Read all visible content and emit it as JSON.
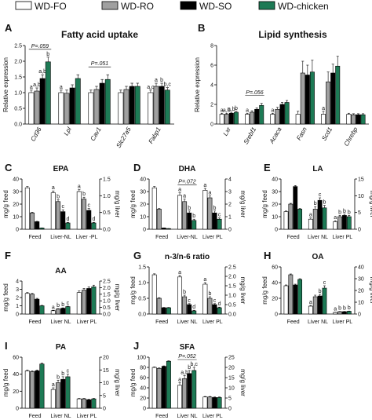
{
  "legend": [
    {
      "name": "WD-FO",
      "color": "#ffffff"
    },
    {
      "name": "WD-RO",
      "color": "#a0a0a0"
    },
    {
      "name": "WD-SO",
      "color": "#000000"
    },
    {
      "name": "WD-chicken",
      "color": "#1d7a55"
    }
  ],
  "chart_data": [
    {
      "letter": "A",
      "type": "bar",
      "title": "Fatty acid uptake",
      "ylabel": "Relative expression",
      "ylim": [
        0,
        2.5
      ],
      "yticks": [
        "0.0",
        "0.5",
        "1.0",
        "1.5",
        "2.0",
        "2.5"
      ],
      "categories": [
        "Cd36",
        "Lpl",
        "Cav1",
        "Slc27a5",
        "Fabp1"
      ],
      "series": [
        {
          "name": "WD-FO",
          "values": [
            1.0,
            1.0,
            1.0,
            1.0,
            1.0
          ],
          "errors": [
            0.08,
            0.08,
            0.08,
            0.08,
            0.08
          ]
        },
        {
          "name": "WD-RO",
          "values": [
            1.05,
            0.98,
            1.1,
            1.1,
            1.2
          ],
          "errors": [
            0.1,
            0.1,
            0.1,
            0.1,
            0.1
          ]
        },
        {
          "name": "WD-SO",
          "values": [
            1.45,
            1.15,
            1.3,
            1.2,
            1.2
          ],
          "errors": [
            0.12,
            0.1,
            0.12,
            0.1,
            0.1
          ]
        },
        {
          "name": "WD-chicken",
          "values": [
            1.98,
            1.45,
            1.42,
            1.2,
            1.08
          ],
          "errors": [
            0.15,
            0.12,
            0.15,
            0.1,
            0.08
          ]
        }
      ],
      "letters": [
        [
          "a",
          "a,b",
          "a,b",
          "b"
        ],
        [
          "a",
          "",
          "",
          ""
        ],
        [
          "",
          "",
          "",
          ""
        ],
        [
          "",
          "",
          "",
          ""
        ],
        [
          "a,c",
          "a",
          "b",
          "b,c"
        ]
      ],
      "annotations": [
        {
          "text": "P=.059",
          "cat": 0
        },
        {
          "text": "P=.051",
          "cat": 2
        }
      ]
    },
    {
      "letter": "B",
      "type": "bar",
      "title": "Lipid synthesis",
      "ylabel": "Relative expression",
      "ylim": [
        0,
        8
      ],
      "yticks": [
        "0",
        "2",
        "4",
        "6",
        "8"
      ],
      "categories": [
        "Lxr",
        "Srebf1",
        "Acaca",
        "Fasn",
        "Scd1",
        "Chrebp"
      ],
      "series": [
        {
          "name": "WD-FO",
          "values": [
            1.0,
            1.0,
            1.0,
            1.0,
            1.0,
            1.0
          ],
          "errors": [
            0.1,
            0.1,
            0.1,
            0.3,
            0.3,
            0.1
          ]
        },
        {
          "name": "WD-RO",
          "values": [
            1.0,
            1.2,
            1.5,
            5.2,
            4.3,
            0.95
          ],
          "errors": [
            0.1,
            0.15,
            0.2,
            1.2,
            1.0,
            0.1
          ]
        },
        {
          "name": "WD-SO",
          "values": [
            1.1,
            1.5,
            2.0,
            5.0,
            5.2,
            0.95
          ],
          "errors": [
            0.1,
            0.15,
            0.2,
            1.0,
            0.9,
            0.1
          ]
        },
        {
          "name": "WD-chicken",
          "values": [
            1.2,
            1.9,
            2.2,
            5.3,
            5.9,
            0.95
          ],
          "errors": [
            0.1,
            0.2,
            0.2,
            1.2,
            1.0,
            0.1
          ]
        }
      ],
      "letters": [
        [
          "a",
          "a,b",
          "a,b",
          "b"
        ],
        [
          "a",
          "",
          "",
          ""
        ],
        [
          "a",
          "",
          "",
          ""
        ],
        [
          "",
          "",
          "",
          ""
        ],
        [
          "a",
          "",
          "",
          ""
        ],
        [
          "",
          "",
          "",
          ""
        ]
      ],
      "annotations": [
        {
          "text": "P=.056",
          "cat": 1
        }
      ]
    },
    {
      "letter": "C",
      "type": "bar",
      "title": "EPA",
      "ylabel": "mg/g feed",
      "ylabel2": "mg/g liver",
      "ylim": [
        0,
        40
      ],
      "yticks": [
        "0",
        "10",
        "20",
        "30",
        "40"
      ],
      "yticks2": [
        "0.0",
        "0.5",
        "1.0",
        "1.5"
      ],
      "categories": [
        "Feed",
        "Liver-NL",
        "Liver -PL"
      ],
      "series": [
        {
          "name": "WD-FO",
          "values": [
            33,
            29,
            30
          ],
          "errors": [
            1,
            1.5,
            1.5
          ]
        },
        {
          "name": "WD-RO",
          "values": [
            13,
            22,
            24
          ],
          "errors": [
            0.5,
            1.5,
            1.5
          ]
        },
        {
          "name": "WD-SO",
          "values": [
            6,
            14,
            15
          ],
          "errors": [
            0.3,
            1.5,
            1.5
          ]
        },
        {
          "name": "WD-chicken",
          "values": [
            1,
            5,
            5
          ],
          "errors": [
            0.1,
            0.5,
            0.5
          ]
        }
      ],
      "letters": [
        [
          "",
          "",
          "",
          ""
        ],
        [
          "a",
          "b",
          "c",
          "d"
        ],
        [
          "a",
          "b",
          "c",
          "d"
        ]
      ]
    },
    {
      "letter": "D",
      "type": "bar",
      "title": "DHA",
      "ylabel": "mg/g feed",
      "ylabel2": "mg/g liver",
      "ylim": [
        0,
        40
      ],
      "yticks": [
        "0",
        "10",
        "20",
        "30",
        "40"
      ],
      "yticks2": [
        "0",
        "1",
        "2",
        "3",
        "4"
      ],
      "categories": [
        "Feed",
        "Liver-NL",
        "Liver PL"
      ],
      "series": [
        {
          "name": "WD-FO",
          "values": [
            33,
            27,
            31
          ],
          "errors": [
            1,
            2,
            1.5
          ]
        },
        {
          "name": "WD-RO",
          "values": [
            16,
            22,
            25
          ],
          "errors": [
            0.5,
            2,
            1.5
          ]
        },
        {
          "name": "WD-SO",
          "values": [
            1,
            13,
            13
          ],
          "errors": [
            0.1,
            1.5,
            1.5
          ]
        },
        {
          "name": "WD-chicken",
          "values": [
            0.5,
            7,
            8
          ],
          "errors": [
            0.1,
            1,
            1
          ]
        }
      ],
      "letters": [
        [
          "",
          "",
          "",
          ""
        ],
        [
          "a",
          "a",
          "b",
          "b"
        ],
        [
          "a",
          "a",
          "b",
          "c"
        ]
      ],
      "annotations": [
        {
          "text": "P=.072",
          "cat": 1
        }
      ]
    },
    {
      "letter": "E",
      "type": "bar",
      "title": "LA",
      "ylabel": "mg/g feed",
      "ylabel2": "mg/g liver",
      "ylim": [
        0,
        40
      ],
      "yticks": [
        "0",
        "10",
        "20",
        "30",
        "40"
      ],
      "yticks2": [
        "0",
        "5",
        "10",
        "15"
      ],
      "categories": [
        "Feed",
        "Liver NL",
        "Liver PL"
      ],
      "series": [
        {
          "name": "WD-FO",
          "values": [
            14,
            8,
            6
          ],
          "errors": [
            0.5,
            1,
            0.8
          ]
        },
        {
          "name": "WD-RO",
          "values": [
            20,
            16,
            10
          ],
          "errors": [
            0.6,
            2,
            1
          ]
        },
        {
          "name": "WD-SO",
          "values": [
            34,
            23,
            11
          ],
          "errors": [
            0.8,
            2,
            1
          ]
        },
        {
          "name": "WD-chicken",
          "values": [
            16,
            17,
            10
          ],
          "errors": [
            0.5,
            2,
            1
          ]
        }
      ],
      "letters": [
        [
          "",
          "",
          "",
          ""
        ],
        [
          "a",
          "b",
          "c",
          "b"
        ],
        [
          "a",
          "b",
          "b",
          "b"
        ]
      ]
    },
    {
      "letter": "F",
      "type": "bar",
      "title": "AA",
      "ylabel": "mg/g feed",
      "ylabel2": "mg/g liver",
      "ylim": [
        0,
        4
      ],
      "yticks": [
        "0",
        "1",
        "2",
        "3",
        "4"
      ],
      "yticks2": [
        "0.0",
        "0.5",
        "1.0",
        "1.5",
        "2.0",
        "2.5"
      ],
      "categories": [
        "Feed",
        "Liver NL",
        "Liver PL"
      ],
      "series": [
        {
          "name": "WD-FO",
          "values": [
            2.5,
            0.4,
            2.6
          ],
          "errors": [
            0.1,
            0.05,
            0.2
          ]
        },
        {
          "name": "WD-RO",
          "values": [
            2.4,
            0.6,
            2.9
          ],
          "errors": [
            0.1,
            0.05,
            0.2
          ]
        },
        {
          "name": "WD-SO",
          "values": [
            1.8,
            0.7,
            3.1
          ],
          "errors": [
            0.1,
            0.05,
            0.2
          ]
        },
        {
          "name": "WD-chicken",
          "values": [
            1.0,
            0.9,
            3.3
          ],
          "errors": [
            0.05,
            0.05,
            0.2
          ]
        }
      ],
      "letters": [
        [
          "",
          "",
          "",
          ""
        ],
        [
          "a",
          "b",
          "b",
          "c"
        ],
        [
          "",
          "",
          "",
          ""
        ]
      ]
    },
    {
      "letter": "G",
      "type": "bar",
      "title": "n-3/n-6 ratio",
      "ylabel": "mg/g feed",
      "ylabel2": "mg/g liver",
      "ylim": [
        0,
        1.5
      ],
      "yticks": [
        "0.0",
        "0.5",
        "1.0",
        "1.5"
      ],
      "yticks2": [
        "0.0",
        "0.5",
        "1.0",
        "1.5",
        "2.0",
        "2.5"
      ],
      "categories": [
        "Feed",
        "Liver NL",
        "Liver PL"
      ],
      "series": [
        {
          "name": "WD-FO",
          "values": [
            1.25,
            1.18,
            0.95
          ],
          "errors": [
            0.03,
            0.05,
            0.05
          ]
        },
        {
          "name": "WD-RO",
          "values": [
            0.5,
            0.55,
            0.5
          ],
          "errors": [
            0.02,
            0.05,
            0.05
          ]
        },
        {
          "name": "WD-SO",
          "values": [
            0.2,
            0.3,
            0.3
          ],
          "errors": [
            0.01,
            0.03,
            0.03
          ]
        },
        {
          "name": "WD-chicken",
          "values": [
            0.2,
            0.1,
            0.2
          ],
          "errors": [
            0.01,
            0.02,
            0.02
          ]
        }
      ],
      "letters": [
        [
          "",
          "",
          "",
          ""
        ],
        [
          "a",
          "b",
          "c",
          "d"
        ],
        [
          "a",
          "b",
          "c",
          "d"
        ]
      ]
    },
    {
      "letter": "H",
      "type": "bar",
      "title": "OA",
      "ylabel": "mg/g feed",
      "ylabel2": "mg/g liver",
      "ylim": [
        0,
        60
      ],
      "yticks": [
        "0",
        "20",
        "40",
        "60"
      ],
      "yticks2": [
        "0",
        "10",
        "20",
        "30",
        "40"
      ],
      "categories": [
        "Feed",
        "Liver NL",
        "Liver PL"
      ],
      "series": [
        {
          "name": "WD-FO",
          "values": [
            36,
            10,
            2
          ],
          "errors": [
            1,
            1,
            0.3
          ]
        },
        {
          "name": "WD-RO",
          "values": [
            50,
            22,
            3
          ],
          "errors": [
            1,
            2,
            0.3
          ]
        },
        {
          "name": "WD-SO",
          "values": [
            37,
            23,
            3
          ],
          "errors": [
            1,
            2,
            0.3
          ]
        },
        {
          "name": "WD-chicken",
          "values": [
            44,
            33,
            3.5
          ],
          "errors": [
            1,
            3,
            0.3
          ]
        }
      ],
      "letters": [
        [
          "",
          "",
          "",
          ""
        ],
        [
          "a",
          "",
          "b",
          "c"
        ],
        [
          "a",
          "b",
          "b",
          "b"
        ]
      ]
    },
    {
      "letter": "I",
      "type": "bar",
      "title": "PA",
      "ylabel": "mg/g feed",
      "ylabel2": "mg/g liver",
      "ylim": [
        0,
        60
      ],
      "yticks": [
        "0",
        "20",
        "40",
        "60"
      ],
      "yticks2": [
        "0",
        "5",
        "10",
        "15",
        "20"
      ],
      "categories": [
        "Feed",
        "Liver NL",
        "Liver PL"
      ],
      "series": [
        {
          "name": "WD-FO",
          "values": [
            44,
            22,
            11
          ],
          "errors": [
            1,
            2,
            0.5
          ]
        },
        {
          "name": "WD-RO",
          "values": [
            43,
            30,
            11
          ],
          "errors": [
            1,
            3,
            0.5
          ]
        },
        {
          "name": "WD-SO",
          "values": [
            44,
            34,
            10
          ],
          "errors": [
            1,
            3,
            0.5
          ]
        },
        {
          "name": "WD-chicken",
          "values": [
            52,
            37,
            11
          ],
          "errors": [
            1,
            3,
            0.5
          ]
        }
      ],
      "letters": [
        [
          "",
          "",
          "",
          ""
        ],
        [
          "a",
          "b",
          "b",
          "c"
        ],
        [
          "",
          "",
          "",
          ""
        ]
      ]
    },
    {
      "letter": "J",
      "type": "bar",
      "title": "SFA",
      "ylabel": "mg/g feed",
      "ylabel2": "mg/g liver",
      "ylim": [
        0,
        100
      ],
      "yticks": [
        "0",
        "20",
        "40",
        "60",
        "80",
        "100"
      ],
      "yticks2": [
        "0",
        "5",
        "10",
        "15",
        "20",
        "25"
      ],
      "categories": [
        "Feed",
        "Liver NL",
        "Liver PL"
      ],
      "series": [
        {
          "name": "WD-FO",
          "values": [
            80,
            45,
            22
          ],
          "errors": [
            1,
            5,
            1
          ]
        },
        {
          "name": "WD-RO",
          "values": [
            78,
            58,
            22
          ],
          "errors": [
            1,
            6,
            1
          ]
        },
        {
          "name": "WD-SO",
          "values": [
            82,
            68,
            21
          ],
          "errors": [
            1,
            6,
            1
          ]
        },
        {
          "name": "WD-chicken",
          "values": [
            92,
            74,
            21
          ],
          "errors": [
            1,
            6,
            1
          ]
        }
      ],
      "letters": [
        [
          "",
          "",
          "",
          ""
        ],
        [
          "a",
          "a,b",
          "b",
          "b,c"
        ],
        [
          "",
          "",
          "",
          ""
        ]
      ],
      "annotations": [
        {
          "text": "P=.052",
          "cat": 1
        }
      ]
    }
  ]
}
